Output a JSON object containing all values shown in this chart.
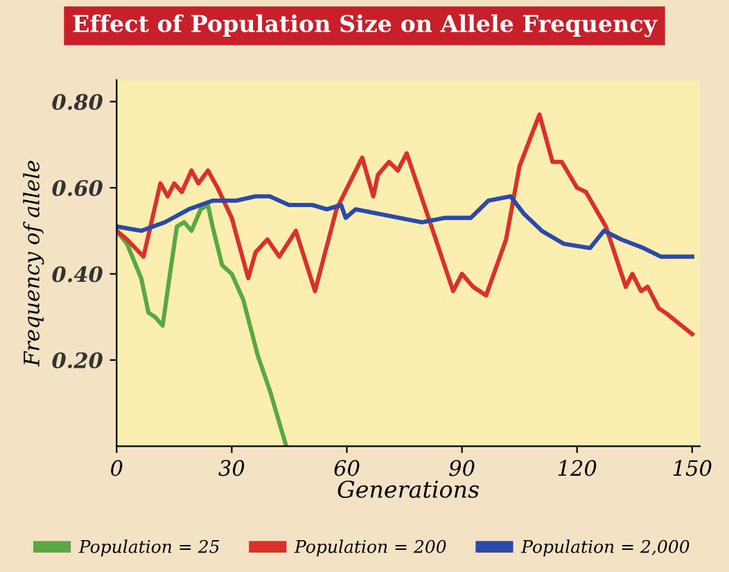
{
  "chart_data": {
    "type": "line",
    "title": "Effect of Population Size on Allele Frequency",
    "xlabel": "Generations",
    "ylabel": "Frequency of allele",
    "xlim": [
      0,
      152
    ],
    "ylim": [
      0,
      0.85
    ],
    "xticks": [
      0,
      30,
      60,
      90,
      120,
      150
    ],
    "yticks": [
      {
        "value": 0.2,
        "label": "0.20"
      },
      {
        "value": 0.4,
        "label": "0.40"
      },
      {
        "value": 0.6,
        "label": "0.60"
      },
      {
        "value": 0.8,
        "label": "0.80"
      }
    ],
    "grid": false,
    "legend": "bottom",
    "marker": "none",
    "line_style": "solid",
    "series": [
      {
        "name": "Population = 25",
        "color": "#5aa844",
        "x": [
          0,
          2.7,
          6.4,
          8.3,
          10,
          12,
          13.9,
          15.7,
          17.6,
          19.5,
          21.9,
          23.8,
          25,
          27.5,
          30,
          33,
          36.8,
          39.9,
          44.2
        ],
        "values": [
          0.5,
          0.47,
          0.39,
          0.31,
          0.3,
          0.28,
          0.4,
          0.51,
          0.52,
          0.5,
          0.55,
          0.56,
          0.51,
          0.42,
          0.4,
          0.34,
          0.21,
          0.13,
          0.0
        ]
      },
      {
        "name": "Population = 200",
        "color": "#d8322b",
        "x": [
          0,
          2.7,
          7,
          11.4,
          13.3,
          15,
          17,
          19.5,
          21.3,
          23.8,
          26.3,
          30,
          34.3,
          36.2,
          39.3,
          42.4,
          46.7,
          51.7,
          57.3,
          64,
          66.9,
          68.1,
          71,
          73.3,
          75.6,
          81.3,
          87.7,
          90,
          92.9,
          96.3,
          101.5,
          105,
          110.2,
          113.6,
          116,
          120,
          122.3,
          127.5,
          132.7,
          134.4,
          136.7,
          138.4,
          141.3,
          143,
          150
        ],
        "values": [
          0.5,
          0.48,
          0.44,
          0.61,
          0.58,
          0.61,
          0.59,
          0.64,
          0.61,
          0.64,
          0.6,
          0.53,
          0.39,
          0.45,
          0.48,
          0.44,
          0.5,
          0.36,
          0.55,
          0.67,
          0.58,
          0.63,
          0.66,
          0.64,
          0.68,
          0.53,
          0.36,
          0.4,
          0.37,
          0.35,
          0.48,
          0.65,
          0.77,
          0.66,
          0.66,
          0.6,
          0.59,
          0.51,
          0.37,
          0.4,
          0.36,
          0.37,
          0.32,
          0.31,
          0.26
        ]
      },
      {
        "name": "Population = 2,000",
        "color": "#2b4aa8",
        "x": [
          0,
          6.4,
          12.6,
          18.8,
          25,
          31.2,
          36.2,
          39.9,
          44.9,
          51,
          54.8,
          58.5,
          59.7,
          62.3,
          68.1,
          73.8,
          79.6,
          85.4,
          92.3,
          96.9,
          102.7,
          106.1,
          110.8,
          116.5,
          123.4,
          127,
          131.5,
          137.3,
          141.9,
          146.5,
          150
        ],
        "values": [
          0.51,
          0.5,
          0.52,
          0.55,
          0.57,
          0.57,
          0.58,
          0.58,
          0.56,
          0.56,
          0.55,
          0.56,
          0.53,
          0.55,
          0.54,
          0.53,
          0.52,
          0.53,
          0.53,
          0.57,
          0.58,
          0.54,
          0.5,
          0.47,
          0.46,
          0.5,
          0.48,
          0.46,
          0.44,
          0.44,
          0.44
        ]
      }
    ]
  }
}
